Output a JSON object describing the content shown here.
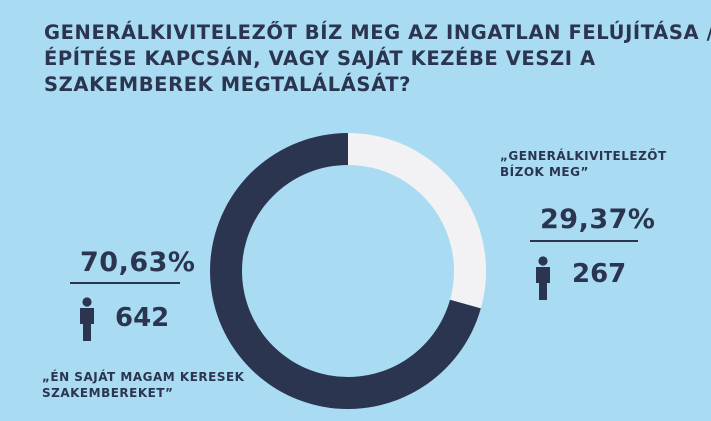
{
  "title_lines": [
    "GENERÁLKIVITELEZŐT BÍZ MEG AZ INGATLAN FELÚJÍTÁSA /",
    "ÉPÍTÉSE KAPCSÁN, VAGY SAJÁT KEZÉBE VESZI A",
    "SZAKEMBEREK MEGTALÁLÁSÁT?"
  ],
  "colors": {
    "background": "#a9dcf3",
    "dark": "#2b3550",
    "light": "#f2f2f4"
  },
  "chart_data": {
    "type": "pie",
    "variant": "donut",
    "title": "GENERÁLKIVITELEZŐT BÍZ MEG AZ INGATLAN FELÚJÍTÁSA / ÉPÍTÉSE KAPCSÁN, VAGY SAJÁT KEZÉBE VESZI A SZAKEMBEREK MEGTALÁLÁSÁT?",
    "slices": [
      {
        "label_lines": [
          "„GENERÁLKIVITELEZŐT",
          "BÍZOK MEG”"
        ],
        "percent": 29.37,
        "percent_label": "29,37%",
        "count": 267,
        "color": "#f2f2f4"
      },
      {
        "label_lines": [
          "„ÉN SAJÁT MAGAM KERESEK",
          "SZAKEMBEREKET”"
        ],
        "percent": 70.63,
        "percent_label": "70,63%",
        "count": 642,
        "color": "#2b3550"
      }
    ]
  }
}
